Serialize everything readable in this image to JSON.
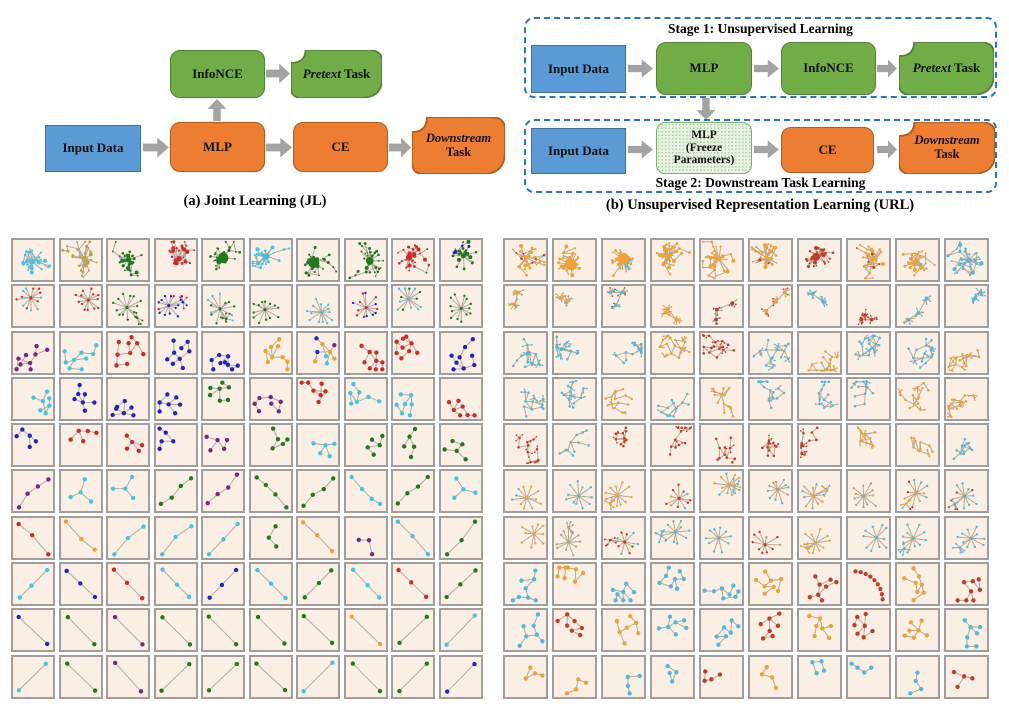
{
  "diagram_a": {
    "caption": "(a) Joint Learning (JL)",
    "boxes": {
      "input": "Input Data",
      "mlp": "MLP",
      "ce": "CE",
      "infonce": "InfoNCE",
      "pretext_prefix": "Pretext",
      "pretext_suffix": " Task",
      "downstream_prefix": "Downstream",
      "downstream_suffix": "Task"
    }
  },
  "diagram_b": {
    "caption": "(b) Unsupervised Representation Learning (URL)",
    "stage1_label": "Stage 1: Unsupervised Learning",
    "stage2_label": "Stage 2: Downstream Task Learning",
    "boxes": {
      "input1": "Input Data",
      "mlp": "MLP",
      "infonce": "InfoNCE",
      "pretext_prefix": "Pretext",
      "pretext_suffix": " Task",
      "input2": "Input Data",
      "freeze_line1": "MLP",
      "freeze_line2": "(Freeze",
      "freeze_line3": "Parameters)",
      "ce": "CE",
      "downstream_prefix": "Downstream",
      "downstream_suffix": "Task"
    }
  },
  "colors": {
    "blue": "#5b9bd5",
    "blue_border": "#41719c",
    "orange": "#ed7d31",
    "orange_border": "#b55a1a",
    "green": "#70ad47",
    "green_border": "#538135",
    "freeze_bg": "#e9f3e3",
    "freeze_border": "#7fb069",
    "arrow": "#a3a3a3",
    "dashed_border": "#2676c6",
    "cell_background": "#f9efe4",
    "cell_border": "#a29e9b"
  },
  "grid_left": {
    "edge": "#b3a89e",
    "palette": {
      "b": "#2323c8",
      "c": "#3ec6e6",
      "p": "#7d2382",
      "r": "#d62728",
      "g": "#1e7a1e",
      "o": "#efa427",
      "t": "#c3a243"
    },
    "rows": [
      {
        "type": "hair",
        "n": 30,
        "cells": [
          "c",
          "t",
          "grc",
          "rbpg",
          "g",
          "c",
          "gc",
          "g",
          "rg",
          "gb"
        ]
      },
      {
        "type": "star",
        "n": 13,
        "cells": [
          "rc",
          "r",
          "g",
          "br",
          "gc",
          "g",
          "c",
          "rb",
          "cg",
          "g"
        ]
      },
      {
        "type": "tree",
        "n": 9,
        "cells": [
          "p",
          "c",
          "r",
          "b",
          "b",
          "o",
          "m",
          "r",
          "r",
          "b"
        ]
      },
      {
        "type": "tree",
        "n": 7,
        "cells": [
          "c",
          "b",
          "bg",
          "b",
          "g",
          "p",
          "r",
          "c",
          "cb",
          "rg"
        ]
      },
      {
        "type": "tree",
        "n": 5,
        "cells": [
          "bc",
          "rc",
          "r",
          "b",
          "p",
          "g",
          "c",
          "g",
          "g",
          "g"
        ]
      },
      {
        "type": "chain",
        "n": 4,
        "cells": [
          "p",
          "c",
          "c",
          "g",
          "p",
          "g",
          "gr",
          "c",
          "g",
          "c"
        ]
      },
      {
        "type": "chain",
        "n": 3,
        "cells": [
          "rg",
          "o",
          "c",
          "c",
          "c",
          "gc",
          "o",
          "p",
          "c",
          "g"
        ]
      },
      {
        "type": "line",
        "n": 3,
        "cells": [
          "c",
          "b",
          "r",
          "c",
          "b",
          "c",
          "g",
          "cr",
          "r",
          "g"
        ]
      },
      {
        "type": "line",
        "n": 2,
        "cells": [
          "b",
          "g",
          "p",
          "g",
          "g",
          "g",
          "g",
          "o",
          "g",
          "c"
        ]
      },
      {
        "type": "line",
        "n": 2,
        "cells": [
          "c",
          "g",
          "p",
          "g",
          "g",
          "g",
          "c",
          "g",
          "g",
          "b"
        ]
      }
    ]
  },
  "grid_right": {
    "edge": "#b8a88f",
    "palette": {
      "o": "#f0a232",
      "c": "#52b7dc",
      "r": "#c43a2c",
      "t": "#b0a08a",
      "g": "#8aa86a"
    },
    "rows": [
      {
        "type": "hair",
        "n": 34,
        "cells": [
          "or",
          "o",
          "oc",
          "o",
          "o",
          "ocr",
          "r",
          "or",
          "oct",
          "c"
        ]
      },
      {
        "type": "clus",
        "n": 20,
        "cells": [
          "oc",
          "oc",
          "cr",
          "o",
          "rc",
          "or",
          "c",
          "r",
          "co",
          "c"
        ]
      },
      {
        "type": "ftree",
        "n": 16,
        "cells": [
          "cro",
          "cr",
          "cr",
          "oc",
          "rc",
          "co",
          "oc",
          "cro",
          "co",
          "ot"
        ]
      },
      {
        "type": "ftree",
        "n": 13,
        "cells": [
          "cr",
          "c",
          "oc",
          "c",
          "ot",
          "c",
          "co",
          "cro",
          "o",
          "or"
        ]
      },
      {
        "type": "ftree",
        "n": 11,
        "cells": [
          "rc",
          "c",
          "rco",
          "rc",
          "r",
          "rt",
          "rc",
          "o",
          "or",
          "cr"
        ]
      },
      {
        "type": "star",
        "n": 11,
        "cells": [
          "oc",
          "c",
          "o",
          "roc",
          "oc",
          "tc",
          "oc",
          "to",
          "orc",
          "cr"
        ]
      },
      {
        "type": "star",
        "n": 10,
        "cells": [
          "o",
          "t",
          "rc",
          "c",
          "c",
          "rt",
          "o",
          "c",
          "c",
          "c"
        ]
      },
      {
        "type": "tree",
        "n": 8,
        "cells": [
          "c",
          "o",
          "c",
          "cr",
          "c",
          "o",
          "r",
          "R",
          "oc",
          "rco"
        ]
      },
      {
        "type": "tree",
        "n": 7,
        "cells": [
          "c",
          "rc",
          "o",
          "c",
          "co",
          "r",
          "o",
          "r",
          "oc",
          "c"
        ]
      },
      {
        "type": "tree",
        "n": 4,
        "cells": [
          "o",
          "oc",
          "c",
          "c",
          "roc",
          "o",
          "c",
          "c",
          "c",
          "rc"
        ]
      }
    ]
  }
}
